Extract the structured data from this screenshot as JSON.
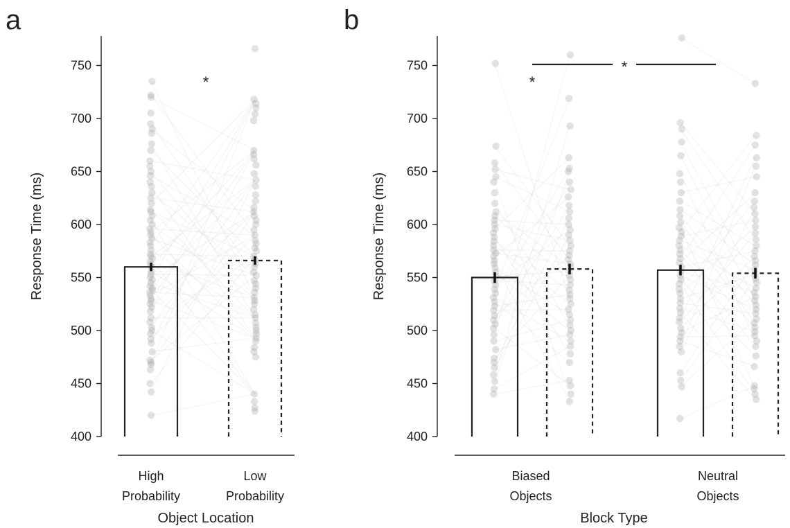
{
  "chart_data": [
    {
      "panel": "a",
      "type": "bar",
      "ylabel": "Response Time (ms)",
      "xlabel": "Object Location",
      "ylim": [
        400,
        780
      ],
      "yticks": [
        400,
        450,
        500,
        550,
        600,
        650,
        700,
        750
      ],
      "categories": [
        {
          "lines": [
            "High",
            "Probability"
          ]
        },
        {
          "lines": [
            "Low",
            "Probability"
          ]
        }
      ],
      "bars": [
        {
          "value": 560,
          "err": 4,
          "style": "solid"
        },
        {
          "value": 566,
          "err": 4,
          "style": "dashed"
        }
      ],
      "points": [
        [
          420,
          442,
          450,
          463,
          468,
          470,
          472,
          480,
          488,
          492,
          497,
          500,
          503,
          508,
          512,
          518,
          522,
          525,
          528,
          530,
          533,
          536,
          538,
          540,
          542,
          545,
          548,
          550,
          553,
          556,
          560,
          562,
          565,
          568,
          570,
          572,
          576,
          580,
          583,
          587,
          590,
          593,
          596,
          600,
          604,
          608,
          612,
          614,
          620,
          625,
          630,
          636,
          640,
          646,
          650,
          655,
          660,
          670,
          676,
          686,
          690,
          695,
          705,
          720,
          722,
          735
        ],
        [
          424,
          427,
          433,
          440,
          475,
          480,
          484,
          490,
          493,
          497,
          500,
          503,
          507,
          512,
          515,
          520,
          525,
          528,
          531,
          536,
          540,
          544,
          547,
          552,
          555,
          560,
          563,
          567,
          570,
          575,
          578,
          582,
          585,
          590,
          595,
          600,
          604,
          608,
          612,
          616,
          622,
          628,
          636,
          642,
          648,
          656,
          662,
          666,
          670,
          698,
          704,
          710,
          714,
          718,
          766
        ]
      ],
      "significance": [
        {
          "label": "*",
          "value": 740
        }
      ]
    },
    {
      "panel": "b",
      "type": "bar",
      "ylabel": "Response Time (ms)",
      "xlabel": "Block Type",
      "ylim": [
        400,
        780
      ],
      "yticks": [
        400,
        450,
        500,
        550,
        600,
        650,
        700,
        750
      ],
      "categories": [
        {
          "lines": [
            "Biased",
            "Objects"
          ]
        },
        {
          "lines": [
            "Neutral",
            "Objects"
          ]
        }
      ],
      "bars": [
        {
          "group": 0,
          "value": 550,
          "err": 5,
          "style": "solid"
        },
        {
          "group": 0,
          "value": 558,
          "err": 5,
          "style": "dashed"
        },
        {
          "group": 1,
          "value": 557,
          "err": 5,
          "style": "solid"
        },
        {
          "group": 1,
          "value": 554,
          "err": 5,
          "style": "dashed"
        }
      ],
      "points": [
        [
          440,
          445,
          452,
          458,
          465,
          470,
          474,
          482,
          490,
          496,
          502,
          506,
          510,
          514,
          519,
          523,
          527,
          531,
          535,
          539,
          543,
          547,
          551,
          555,
          559,
          563,
          566,
          570,
          573,
          576,
          580,
          584,
          588,
          592,
          596,
          600,
          604,
          608,
          612,
          620,
          630,
          640,
          645,
          652,
          658,
          674,
          752
        ],
        [
          433,
          440,
          448,
          453,
          470,
          478,
          485,
          490,
          496,
          500,
          505,
          510,
          515,
          520,
          525,
          530,
          534,
          538,
          543,
          548,
          552,
          556,
          560,
          563,
          567,
          571,
          575,
          580,
          585,
          590,
          595,
          600,
          606,
          612,
          618,
          626,
          633,
          640,
          650,
          653,
          663,
          693,
          719,
          760
        ],
        [
          417,
          447,
          453,
          460,
          480,
          485,
          490,
          494,
          498,
          502,
          508,
          512,
          517,
          521,
          526,
          530,
          535,
          539,
          544,
          548,
          552,
          556,
          560,
          564,
          568,
          572,
          576,
          580,
          585,
          589,
          593,
          597,
          602,
          608,
          614,
          622,
          630,
          640,
          648,
          665,
          678,
          690,
          696,
          776
        ],
        [
          435,
          440,
          445,
          448,
          466,
          476,
          485,
          490,
          495,
          499,
          503,
          507,
          511,
          516,
          520,
          524,
          528,
          532,
          536,
          540,
          545,
          549,
          553,
          557,
          562,
          566,
          570,
          575,
          580,
          586,
          592,
          598,
          604,
          610,
          616,
          622,
          630,
          645,
          655,
          663,
          675,
          684,
          733
        ]
      ],
      "significance": [
        {
          "label": "*",
          "value": 740,
          "scope": "within-biased"
        },
        {
          "label": "*",
          "value": 752,
          "scope": "between-groups"
        }
      ]
    }
  ],
  "panels": {
    "a": {
      "letter": "a",
      "ylabel": "Response Time (ms)",
      "xlabel": "Object Location",
      "cat0_l1": "High",
      "cat0_l2": "Probability",
      "cat1_l1": "Low",
      "cat1_l2": "Probability",
      "sig": "*"
    },
    "b": {
      "letter": "b",
      "ylabel": "Response Time (ms)",
      "xlabel": "Block Type",
      "cat0_l1": "Biased",
      "cat0_l2": "Objects",
      "cat1_l1": "Neutral",
      "cat1_l2": "Objects",
      "sig_within": "*",
      "sig_between": "*"
    },
    "ytick_labels": [
      "400",
      "450",
      "500",
      "550",
      "600",
      "650",
      "700",
      "750"
    ]
  }
}
